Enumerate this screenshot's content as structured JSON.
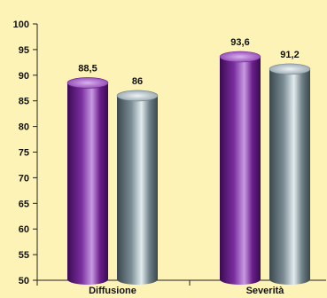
{
  "chart_data": {
    "type": "bar",
    "categories": [
      "Diffusione",
      "Severità"
    ],
    "series": [
      {
        "values": [
          88.5,
          93.6
        ],
        "color": "#6a1f8a"
      },
      {
        "values": [
          86,
          91.2
        ],
        "color": "#6f8088"
      }
    ],
    "data_labels": [
      [
        "88,5",
        "93,6"
      ],
      [
        "86",
        "91,2"
      ]
    ],
    "ylim": [
      50,
      100
    ],
    "yticks": [
      50,
      55,
      60,
      65,
      70,
      75,
      80,
      85,
      90,
      95,
      100
    ],
    "grid": false,
    "background": "#fdf3b6",
    "bar_style": "3d-cylinder"
  }
}
